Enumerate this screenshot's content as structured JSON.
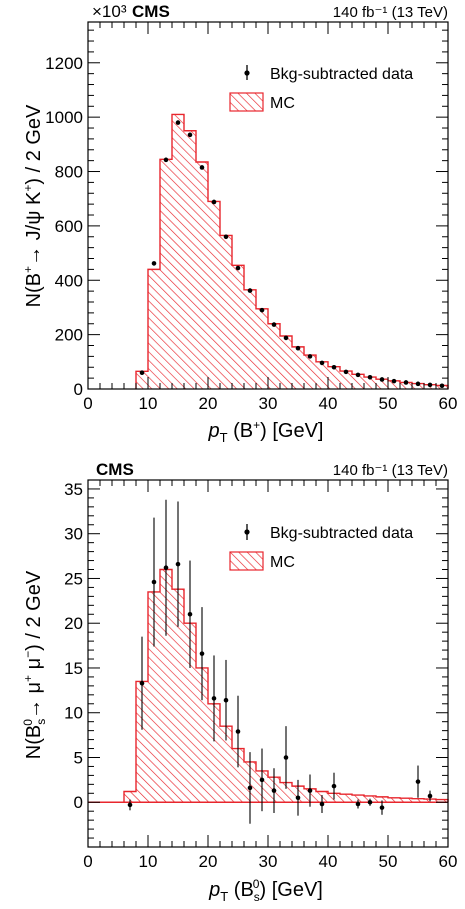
{
  "chart_data": [
    {
      "type": "bar",
      "experiment": "CMS",
      "luminosity": "140 fb⁻¹ (13 TeV)",
      "exponent_label": "×10³",
      "xlabel": "p_T (B⁺) [GeV]",
      "ylabel": "N(B⁺→ J/ψ K⁺) / 2 GeV",
      "xlim": [
        0,
        60
      ],
      "ylim": [
        0,
        1350
      ],
      "xticks": [
        "0",
        "10",
        "20",
        "30",
        "40",
        "50",
        "60"
      ],
      "yticks": [
        "0",
        "200",
        "400",
        "600",
        "800",
        "1000",
        "1200"
      ],
      "legend": {
        "position": "top-right",
        "data_label": "Bkg-subtracted data",
        "mc_label": "MC"
      },
      "mc_edges": [
        8,
        10,
        12,
        14,
        16,
        18,
        20,
        22,
        24,
        26,
        28,
        30,
        32,
        34,
        36,
        38,
        40,
        42,
        44,
        46,
        48,
        50,
        52,
        54,
        56,
        58,
        60
      ],
      "mc_values": [
        65,
        440,
        845,
        1010,
        950,
        835,
        690,
        565,
        455,
        365,
        295,
        240,
        195,
        155,
        125,
        100,
        82,
        66,
        54,
        44,
        36,
        30,
        24,
        20,
        16,
        13
      ],
      "data_x": [
        9,
        11,
        13,
        15,
        17,
        19,
        21,
        23,
        25,
        27,
        29,
        31,
        33,
        35,
        37,
        39,
        41,
        43,
        45,
        47,
        49,
        51,
        53,
        55,
        57,
        59
      ],
      "data_y": [
        60,
        462,
        843,
        980,
        935,
        815,
        688,
        560,
        445,
        362,
        290,
        237,
        188,
        150,
        120,
        96,
        80,
        63,
        52,
        43,
        35,
        29,
        24,
        19,
        15,
        12
      ]
    },
    {
      "type": "bar",
      "experiment": "CMS",
      "luminosity": "140 fb⁻¹ (13 TeV)",
      "xlabel": "p_T (Bₛ⁰) [GeV]",
      "ylabel": "N(Bₛ⁰→ μ⁺ μ⁻) / 2 GeV",
      "xlim": [
        0,
        60
      ],
      "ylim": [
        -5,
        36
      ],
      "xticks": [
        "0",
        "10",
        "20",
        "30",
        "40",
        "50",
        "60"
      ],
      "yticks": [
        "0",
        "5",
        "10",
        "15",
        "20",
        "25",
        "30",
        "35"
      ],
      "legend": {
        "position": "top-right",
        "data_label": "Bkg-subtracted data",
        "mc_label": "MC"
      },
      "mc_edges": [
        0,
        6,
        8,
        10,
        12,
        14,
        16,
        18,
        20,
        22,
        24,
        26,
        28,
        30,
        32,
        34,
        36,
        38,
        40,
        42,
        44,
        46,
        48,
        50,
        52,
        54,
        56,
        58,
        60
      ],
      "mc_values": [
        0,
        1.2,
        13.5,
        23.5,
        26.0,
        23.8,
        20.0,
        15.0,
        11.0,
        8.5,
        6.0,
        4.5,
        3.5,
        2.8,
        2.2,
        1.8,
        1.5,
        1.2,
        1.0,
        0.9,
        0.8,
        0.7,
        0.6,
        0.5,
        0.45,
        0.4,
        0.35,
        0.3
      ],
      "data_points": [
        {
          "x": 7,
          "y": -0.3,
          "err": 0.6
        },
        {
          "x": 9,
          "y": 13.3,
          "err": 5.2
        },
        {
          "x": 11,
          "y": 24.6,
          "err": 7.2
        },
        {
          "x": 13,
          "y": 26.2,
          "err": 7.6
        },
        {
          "x": 15,
          "y": 26.6,
          "err": 7.0
        },
        {
          "x": 17,
          "y": 21.0,
          "err": 6.0
        },
        {
          "x": 19,
          "y": 16.6,
          "err": 5.2
        },
        {
          "x": 21,
          "y": 11.6,
          "err": 4.8
        },
        {
          "x": 23,
          "y": 11.4,
          "err": 4.5
        },
        {
          "x": 25,
          "y": 7.9,
          "err": 4.0
        },
        {
          "x": 27,
          "y": 1.6,
          "err": 4.0
        },
        {
          "x": 29,
          "y": 2.5,
          "err": 3.5
        },
        {
          "x": 31,
          "y": 1.3,
          "err": 2.5
        },
        {
          "x": 33,
          "y": 5.0,
          "err": 3.5
        },
        {
          "x": 35,
          "y": 0.5,
          "err": 2.0
        },
        {
          "x": 37,
          "y": 1.3,
          "err": 1.8
        },
        {
          "x": 39,
          "y": -0.2,
          "err": 1.0
        },
        {
          "x": 41,
          "y": 1.8,
          "err": 1.5
        },
        {
          "x": 45,
          "y": -0.2,
          "err": 0.5
        },
        {
          "x": 47,
          "y": 0.0,
          "err": 0.4
        },
        {
          "x": 49,
          "y": -0.6,
          "err": 0.8
        },
        {
          "x": 55,
          "y": 2.3,
          "err": 1.8
        },
        {
          "x": 57,
          "y": 0.7,
          "err": 0.6
        }
      ]
    }
  ]
}
